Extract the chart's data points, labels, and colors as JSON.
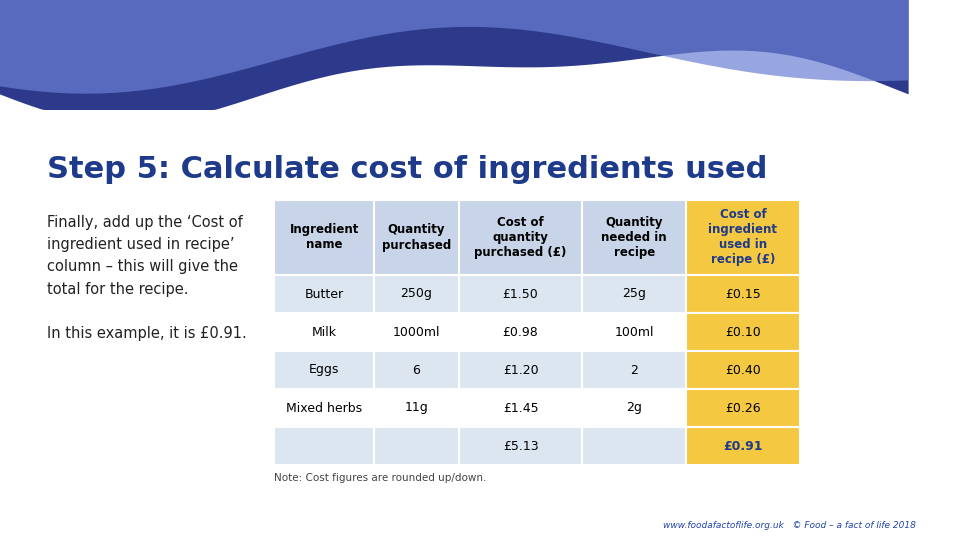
{
  "title": "Step 5: Calculate cost of ingredients used",
  "title_color": "#1e3a8a",
  "background_color": "#ffffff",
  "left_text_lines": [
    "Finally, add up the ‘Cost of",
    "ingredient used in recipe’",
    "column – this will give the",
    "total for the recipe.",
    "",
    "In this example, it is £0.91."
  ],
  "table_headers": [
    "Ingredient\nname",
    "Quantity\npurchased",
    "Cost of\nquantity\npurchased (£)",
    "Quantity\nneeded in\nrecipe",
    "Cost of\ningredient\nused in\nrecipe (£)"
  ],
  "table_rows": [
    [
      "Butter",
      "250g",
      "£1.50",
      "25g",
      "£0.15"
    ],
    [
      "Milk",
      "1000ml",
      "£0.98",
      "100ml",
      "£0.10"
    ],
    [
      "Eggs",
      "6",
      "£1.20",
      "2",
      "£0.40"
    ],
    [
      "Mixed herbs",
      "11g",
      "£1.45",
      "2g",
      "£0.26"
    ],
    [
      "",
      "",
      "£5.13",
      "",
      "£0.91"
    ]
  ],
  "header_bg": "#c8d4e8",
  "row_bg_light": "#dce6f1",
  "row_bg_white": "#ffffff",
  "last_col_bg": "#f5c842",
  "last_col_header_bg": "#f5c842",
  "total_row_bg": "#dce6f1",
  "note_text": "Note: Cost figures are rounded up/down.",
  "footer_text": "www.foodafactoflife.org.uk   © Food – a fact of life 2018",
  "wave_color_dark": "#2d3a8c",
  "wave_color_light": "#6b7fd4"
}
